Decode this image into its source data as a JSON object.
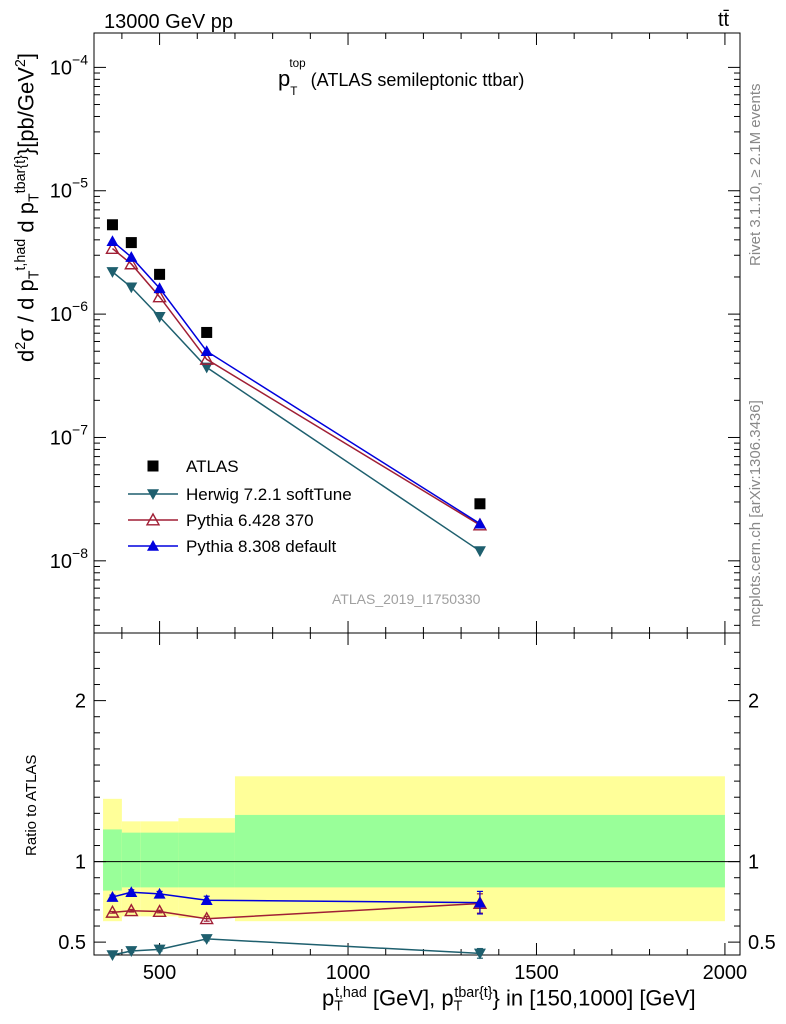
{
  "header": {
    "left": "13000 GeV pp",
    "right": "tt̄"
  },
  "side_labels": {
    "rivet": "Rivet 3.1.10, ≥ 2.1M events",
    "mcplots": "mcplots.cern.ch [arXiv:1306.3436]"
  },
  "plot_title": {
    "main": "p",
    "sub": "T",
    "sup": "top",
    "rest": "(ATLAS semileptonic ttbar)"
  },
  "watermark": "ATLAS_2019_I1750330",
  "ylabel": {
    "d2": "d",
    "sup2": "2",
    "sigma": "σ / d p",
    "sub1": "T",
    "sup1": "t,had",
    "mid": " d p",
    "sub2": "T",
    "sup3": "tbar{t}",
    "tail": "}[pb/GeV",
    "sup4": "2",
    "end": "]"
  },
  "ratio_ylabel": "Ratio to ATLAS",
  "xlabel": {
    "p1": "p",
    "sub1": "T",
    "sup1": "t,had",
    "mid": " [GeV], p",
    "sub2": "T",
    "sup2": "tbar{t}",
    "tail": "} in [150,1000] [GeV]"
  },
  "colors": {
    "data": "#000000",
    "herwig": "#1e5f6e",
    "pythia6": "#a01f35",
    "pythia8": "#0000dd",
    "band_inner": "#99ff99",
    "band_outer": "#ffff99"
  },
  "chart_data": [
    {
      "type": "scatter",
      "name": "main",
      "yscale": "log",
      "xlim": [
        326,
        2040
      ],
      "ylim": [
        2.6e-09,
        0.00019
      ],
      "xticks": [],
      "yticks": [
        {
          "value": 1e-08,
          "base": "10",
          "exp": "−8"
        },
        {
          "value": 1e-07,
          "base": "10",
          "exp": "−7"
        },
        {
          "value": 1e-06,
          "base": "10",
          "exp": "−6"
        },
        {
          "value": 1e-05,
          "base": "10",
          "exp": "−5"
        },
        {
          "value": 0.0001,
          "base": "10",
          "exp": "−4"
        }
      ],
      "x": [
        375,
        425,
        500,
        625,
        1350
      ],
      "series": [
        {
          "name": "ATLAS",
          "marker": "square",
          "values": [
            5.3e-06,
            3.8e-06,
            2.1e-06,
            7.1e-07,
            2.9e-08
          ]
        },
        {
          "name": "Herwig 7.2.1 softTune",
          "marker": "triangle-down",
          "values": [
            2.2e-06,
            1.65e-06,
            9.5e-07,
            3.7e-07,
            1.2e-08
          ]
        },
        {
          "name": "Pythia 6.428 370",
          "marker": "triangle-open",
          "values": [
            3.4e-06,
            2.55e-06,
            1.38e-06,
            4.3e-07,
            1.95e-08
          ]
        },
        {
          "name": "Pythia 8.308 default",
          "marker": "triangle-up",
          "values": [
            3.9e-06,
            2.9e-06,
            1.62e-06,
            5e-07,
            2e-08
          ]
        }
      ],
      "legend": "lower-left"
    },
    {
      "type": "scatter",
      "name": "ratio",
      "ylabel": "Ratio to ATLAS",
      "xlim": [
        326,
        2040
      ],
      "ylim": [
        0.42,
        2.42
      ],
      "xticks": [
        500,
        1000,
        1500,
        2000
      ],
      "yticks": [
        0.5,
        1,
        2
      ],
      "x": [
        375,
        425,
        500,
        625,
        1350
      ],
      "bands": {
        "edges": [
          [
            350,
            400
          ],
          [
            400,
            450
          ],
          [
            450,
            550
          ],
          [
            550,
            700
          ],
          [
            700,
            2000
          ]
        ],
        "inner": [
          [
            0.82,
            1.2
          ],
          [
            0.84,
            1.18
          ],
          [
            0.84,
            1.18
          ],
          [
            0.84,
            1.18
          ],
          [
            0.84,
            1.29
          ]
        ],
        "outer": [
          [
            0.63,
            1.39
          ],
          [
            0.66,
            1.25
          ],
          [
            0.66,
            1.25
          ],
          [
            0.65,
            1.27
          ],
          [
            0.63,
            1.53
          ]
        ]
      },
      "series": [
        {
          "name": "Herwig 7.2.1 softTune",
          "values": [
            0.42,
            0.445,
            0.455,
            0.52,
            0.43
          ],
          "errors": [
            0.005,
            0.01,
            0.01,
            0.012,
            0.03
          ]
        },
        {
          "name": "Pythia 6.428 370",
          "values": [
            0.685,
            0.695,
            0.69,
            0.645,
            0.74
          ],
          "errors": [
            0.005,
            0.008,
            0.008,
            0.015,
            0.06
          ]
        },
        {
          "name": "Pythia 8.308 default",
          "values": [
            0.78,
            0.81,
            0.8,
            0.76,
            0.745
          ],
          "errors": [
            0.012,
            0.015,
            0.015,
            0.025,
            0.07
          ]
        }
      ]
    }
  ]
}
